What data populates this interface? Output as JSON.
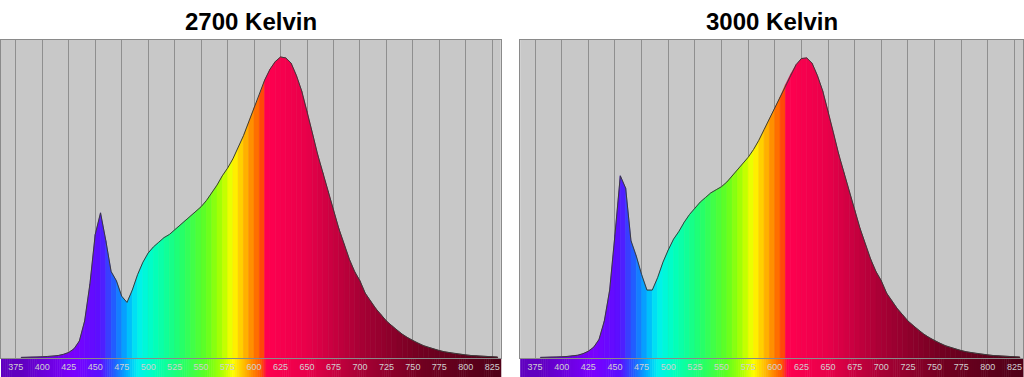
{
  "chart_data": [
    {
      "type": "area",
      "title": "2700 Kelvin",
      "color": "#3a3a3a",
      "grid": true,
      "tick_labels": "x",
      "x": [
        380,
        385,
        390,
        395,
        400,
        405,
        410,
        415,
        420,
        425,
        430,
        435,
        440,
        445,
        450,
        455,
        460,
        465,
        470,
        475,
        480,
        485,
        490,
        495,
        500,
        505,
        510,
        515,
        520,
        525,
        530,
        535,
        540,
        545,
        550,
        555,
        560,
        565,
        570,
        575,
        580,
        585,
        590,
        595,
        600,
        605,
        610,
        615,
        620,
        625,
        630,
        635,
        640,
        645,
        650,
        655,
        660,
        665,
        670,
        675,
        680,
        685,
        690,
        695,
        700,
        705,
        710,
        715,
        720,
        725,
        730,
        735,
        740,
        745,
        750,
        755,
        760,
        765,
        770,
        775,
        780,
        785,
        790,
        795,
        800,
        805,
        810,
        815,
        820,
        825,
        830
      ],
      "values": [
        0.002,
        0.002,
        0.003,
        0.003,
        0.004,
        0.005,
        0.006,
        0.008,
        0.012,
        0.018,
        0.03,
        0.055,
        0.12,
        0.24,
        0.4,
        0.47,
        0.38,
        0.28,
        0.25,
        0.2,
        0.18,
        0.22,
        0.27,
        0.31,
        0.34,
        0.36,
        0.375,
        0.39,
        0.4,
        0.415,
        0.43,
        0.445,
        0.46,
        0.475,
        0.49,
        0.51,
        0.535,
        0.56,
        0.59,
        0.615,
        0.645,
        0.68,
        0.72,
        0.765,
        0.81,
        0.85,
        0.9,
        0.935,
        0.96,
        0.975,
        0.972,
        0.955,
        0.915,
        0.865,
        0.8,
        0.73,
        0.66,
        0.6,
        0.54,
        0.48,
        0.42,
        0.37,
        0.32,
        0.28,
        0.25,
        0.21,
        0.185,
        0.16,
        0.14,
        0.12,
        0.105,
        0.09,
        0.077,
        0.066,
        0.056,
        0.048,
        0.04,
        0.034,
        0.029,
        0.024,
        0.02,
        0.017,
        0.014,
        0.012,
        0.01,
        0.008,
        0.007,
        0.006,
        0.005,
        0.004,
        0.003
      ],
      "xlim": [
        361,
        833
      ],
      "xticks": [
        375,
        400,
        425,
        450,
        475,
        500,
        525,
        550,
        575,
        600,
        625,
        650,
        675,
        700,
        725,
        750,
        775,
        800,
        825
      ],
      "ylim": [
        0,
        1.03
      ]
    },
    {
      "type": "area",
      "title": "3000 Kelvin",
      "color": "#3a3a3a",
      "grid": true,
      "tick_labels": "x",
      "x": [
        380,
        385,
        390,
        395,
        400,
        405,
        410,
        415,
        420,
        425,
        430,
        435,
        440,
        445,
        450,
        455,
        460,
        465,
        470,
        475,
        480,
        485,
        490,
        495,
        500,
        505,
        510,
        515,
        520,
        525,
        530,
        535,
        540,
        545,
        550,
        555,
        560,
        565,
        570,
        575,
        580,
        585,
        590,
        595,
        600,
        605,
        610,
        615,
        620,
        625,
        630,
        635,
        640,
        645,
        650,
        655,
        660,
        665,
        670,
        675,
        680,
        685,
        690,
        695,
        700,
        705,
        710,
        715,
        720,
        725,
        730,
        735,
        740,
        745,
        750,
        755,
        760,
        765,
        770,
        775,
        780,
        785,
        790,
        795,
        800,
        805,
        810,
        815,
        820,
        825,
        830
      ],
      "values": [
        0.002,
        0.002,
        0.003,
        0.003,
        0.004,
        0.005,
        0.007,
        0.009,
        0.014,
        0.022,
        0.035,
        0.06,
        0.12,
        0.22,
        0.4,
        0.59,
        0.55,
        0.38,
        0.33,
        0.27,
        0.22,
        0.22,
        0.26,
        0.31,
        0.35,
        0.385,
        0.41,
        0.44,
        0.465,
        0.485,
        0.505,
        0.52,
        0.535,
        0.545,
        0.555,
        0.57,
        0.59,
        0.61,
        0.63,
        0.65,
        0.675,
        0.705,
        0.74,
        0.775,
        0.81,
        0.845,
        0.885,
        0.92,
        0.95,
        0.97,
        0.972,
        0.955,
        0.915,
        0.865,
        0.8,
        0.73,
        0.66,
        0.6,
        0.54,
        0.48,
        0.42,
        0.37,
        0.32,
        0.28,
        0.25,
        0.21,
        0.185,
        0.16,
        0.14,
        0.12,
        0.105,
        0.09,
        0.077,
        0.066,
        0.056,
        0.048,
        0.04,
        0.034,
        0.029,
        0.024,
        0.02,
        0.017,
        0.014,
        0.012,
        0.01,
        0.008,
        0.007,
        0.006,
        0.005,
        0.004,
        0.003
      ],
      "xlim": [
        361,
        833
      ],
      "xticks": [
        375,
        400,
        425,
        450,
        475,
        500,
        525,
        550,
        575,
        600,
        625,
        650,
        675,
        700,
        725,
        750,
        775,
        800,
        825
      ],
      "ylim": [
        0,
        1.03
      ]
    }
  ]
}
